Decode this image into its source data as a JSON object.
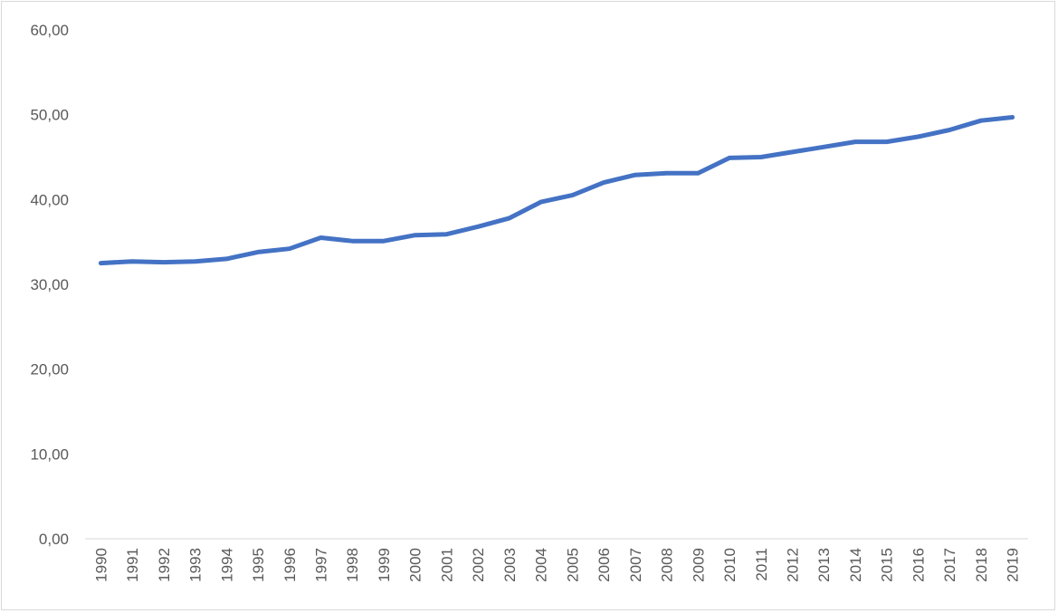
{
  "chart_data": {
    "type": "line",
    "title": "",
    "xlabel": "",
    "ylabel": "",
    "categories": [
      "1990",
      "1991",
      "1992",
      "1993",
      "1994",
      "1995",
      "1996",
      "1997",
      "1998",
      "1999",
      "2000",
      "2001",
      "2002",
      "2003",
      "2004",
      "2005",
      "2006",
      "2007",
      "2008",
      "2009",
      "2010",
      "2011",
      "2012",
      "2013",
      "2014",
      "2015",
      "2016",
      "2017",
      "2018",
      "2019"
    ],
    "y_ticks": [
      "0,00",
      "10,00",
      "20,00",
      "30,00",
      "40,00",
      "50,00",
      "60,00"
    ],
    "ylim": [
      0,
      60
    ],
    "grid": false,
    "legend": "none",
    "series": [
      {
        "color": "#4472c4",
        "values": [
          32.5,
          32.7,
          32.6,
          32.7,
          33.0,
          33.8,
          34.2,
          35.5,
          35.1,
          35.1,
          35.8,
          35.9,
          36.8,
          37.8,
          39.7,
          40.5,
          42.0,
          42.9,
          43.1,
          43.1,
          44.9,
          45.0,
          45.6,
          46.2,
          46.8,
          46.8,
          47.4,
          48.2,
          49.3,
          49.7
        ]
      }
    ]
  }
}
